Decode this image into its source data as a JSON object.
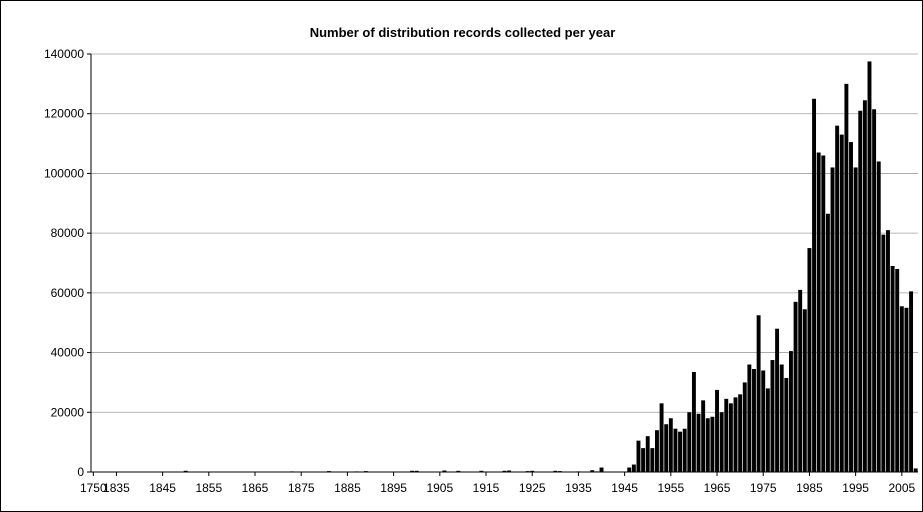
{
  "chart_data": {
    "type": "bar",
    "title": "Number of distribution records collected per year",
    "xlabel": "",
    "ylabel": "",
    "ylim": [
      0,
      140000
    ],
    "y_ticks": [
      "0",
      "20000",
      "40000",
      "60000",
      "80000",
      "100000",
      "120000",
      "140000"
    ],
    "x_tick_labels": [
      "1750",
      "1835",
      "1845",
      "1855",
      "1865",
      "1875",
      "1885",
      "1895",
      "1905",
      "1915",
      "1925",
      "1935",
      "1945",
      "1955",
      "1965",
      "1975",
      "1985",
      "1995",
      "2005"
    ],
    "grid": true,
    "legend": "none",
    "bar_color": "#000000",
    "categories": [
      "1750",
      "1831",
      "1832",
      "1833",
      "1834",
      "1835",
      "1836",
      "1837",
      "1838",
      "1839",
      "1840",
      "1841",
      "1842",
      "1843",
      "1844",
      "1845",
      "1846",
      "1847",
      "1848",
      "1849",
      "1850",
      "1851",
      "1852",
      "1853",
      "1854",
      "1855",
      "1856",
      "1857",
      "1858",
      "1859",
      "1860",
      "1861",
      "1862",
      "1863",
      "1864",
      "1865",
      "1866",
      "1867",
      "1868",
      "1869",
      "1870",
      "1871",
      "1872",
      "1873",
      "1874",
      "1875",
      "1876",
      "1877",
      "1878",
      "1879",
      "1880",
      "1881",
      "1882",
      "1883",
      "1884",
      "1885",
      "1886",
      "1887",
      "1888",
      "1889",
      "1890",
      "1891",
      "1892",
      "1893",
      "1894",
      "1895",
      "1896",
      "1897",
      "1898",
      "1899",
      "1900",
      "1901",
      "1902",
      "1903",
      "1904",
      "1905",
      "1906",
      "1907",
      "1908",
      "1909",
      "1910",
      "1911",
      "1912",
      "1913",
      "1914",
      "1915",
      "1916",
      "1917",
      "1918",
      "1919",
      "1920",
      "1921",
      "1922",
      "1923",
      "1924",
      "1925",
      "1926",
      "1927",
      "1928",
      "1929",
      "1930",
      "1931",
      "1932",
      "1933",
      "1934",
      "1935",
      "1936",
      "1937",
      "1938",
      "1939",
      "1940",
      "1941",
      "1942",
      "1943",
      "1944",
      "1945",
      "1946",
      "1947",
      "1948",
      "1949",
      "1950",
      "1951",
      "1952",
      "1953",
      "1954",
      "1955",
      "1956",
      "1957",
      "1958",
      "1959",
      "1960",
      "1961",
      "1962",
      "1963",
      "1964",
      "1965",
      "1966",
      "1967",
      "1968",
      "1969",
      "1970",
      "1971",
      "1972",
      "1973",
      "1974",
      "1975",
      "1976",
      "1977",
      "1978",
      "1979",
      "1980",
      "1981",
      "1982",
      "1983",
      "1984",
      "1985",
      "1986",
      "1987",
      "1988",
      "1989",
      "1990",
      "1991",
      "1992",
      "1993",
      "1994",
      "1995",
      "1996",
      "1997",
      "1998",
      "1999",
      "2000",
      "2001",
      "2002",
      "2003",
      "2004",
      "2005",
      "2006",
      "2007",
      "2008"
    ],
    "values": [
      0,
      0,
      0,
      0,
      0,
      0,
      0,
      0,
      0,
      0,
      0,
      0,
      0,
      0,
      0,
      0,
      0,
      0,
      0,
      0,
      400,
      0,
      0,
      0,
      0,
      0,
      0,
      0,
      0,
      0,
      0,
      0,
      0,
      0,
      0,
      0,
      0,
      0,
      0,
      0,
      0,
      0,
      0,
      200,
      0,
      0,
      0,
      0,
      0,
      0,
      0,
      300,
      0,
      0,
      0,
      0,
      0,
      200,
      0,
      300,
      0,
      0,
      0,
      0,
      0,
      0,
      0,
      0,
      0,
      400,
      400,
      0,
      0,
      0,
      0,
      0,
      500,
      0,
      0,
      400,
      0,
      0,
      0,
      0,
      400,
      0,
      0,
      0,
      0,
      400,
      500,
      0,
      0,
      0,
      300,
      400,
      0,
      0,
      0,
      0,
      400,
      300,
      0,
      0,
      0,
      200,
      0,
      0,
      600,
      200,
      1500,
      0,
      0,
      0,
      0,
      0,
      0,
      0,
      0,
      0,
      0,
      0,
      0,
      0,
      0,
      0,
      0,
      0,
      0,
      0,
      0,
      0,
      0,
      0,
      0,
      0,
      0,
      0,
      0,
      0,
      0,
      0,
      0,
      0,
      0,
      0,
      0,
      0,
      0,
      0,
      0,
      0,
      0,
      0,
      0,
      0,
      0,
      0,
      0,
      0,
      0,
      0,
      0,
      0,
      0,
      0,
      0,
      0,
      0,
      0,
      0,
      0,
      0,
      0,
      0,
      0,
      0,
      0,
      0
    ],
    "values_1946_2008": [
      1500,
      2500,
      10500,
      8000,
      12000,
      8000,
      14000,
      23000,
      16000,
      18000,
      14500,
      13500,
      14500,
      20000,
      33500,
      19500,
      24000,
      18000,
      18500,
      27500,
      20000,
      24500,
      23000,
      25000,
      26000,
      30000,
      36000,
      34500,
      52500,
      34000,
      28000,
      37500,
      48000,
      36000,
      31500,
      40500,
      57000,
      61000,
      54500,
      75000,
      125000,
      107000,
      106000,
      86500,
      102000,
      116000,
      113000,
      130000,
      110500,
      102000,
      121000,
      124500,
      137500,
      121500,
      104000,
      79500,
      81000,
      69000,
      68000,
      55500,
      55000,
      60500,
      1200
    ]
  }
}
